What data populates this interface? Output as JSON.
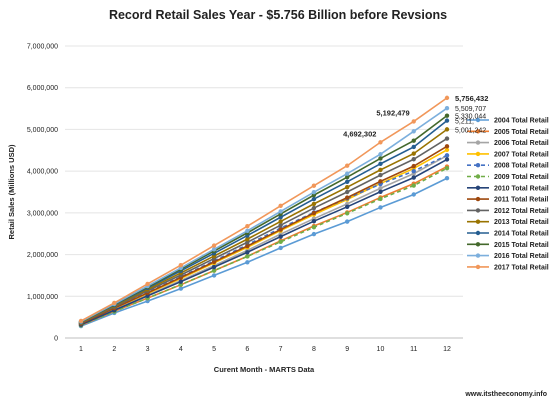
{
  "chart_data": {
    "type": "line",
    "title": "Record Retail Sales Year - $5.756 Billion before Revsions",
    "xlabel": "Curent Month - MARTS Data",
    "ylabel": "Retail Sales (Millions USD)",
    "x": [
      1,
      2,
      3,
      4,
      5,
      6,
      7,
      8,
      9,
      10,
      11,
      12
    ],
    "ylim": [
      0,
      7000000
    ],
    "yticks": [
      0,
      1000000,
      2000000,
      3000000,
      4000000,
      5000000,
      6000000,
      7000000
    ],
    "ytick_labels": [
      "0",
      "1,000,000",
      "2,000,000",
      "3,000,000",
      "4,000,000",
      "5,000,000",
      "6,000,000",
      "7,000,000"
    ],
    "grid": true,
    "legend_position": "right",
    "series": [
      {
        "name": "2004 Total Retail",
        "color": "#5b9bd5",
        "dashed": false,
        "values": [
          285000,
          600000,
          885000,
          1185000,
          1500000,
          1815000,
          2160000,
          2490000,
          2790000,
          3130000,
          3440000,
          3830000
        ]
      },
      {
        "name": "2005 Total Retail",
        "color": "#ed7d31",
        "dashed": false,
        "values": [
          305000,
          640000,
          955000,
          1275000,
          1615000,
          1960000,
          2330000,
          2685000,
          3010000,
          3370000,
          3700000,
          4110000
        ]
      },
      {
        "name": "2006 Total Retail",
        "color": "#a5a5a5",
        "dashed": false,
        "values": [
          330000,
          690000,
          1025000,
          1375000,
          1735000,
          2100000,
          2490000,
          2860000,
          3215000,
          3590000,
          3940000,
          4370000
        ]
      },
      {
        "name": "2007 Total Retail",
        "color": "#ffc000",
        "dashed": false,
        "values": [
          345000,
          715000,
          1065000,
          1425000,
          1800000,
          2175000,
          2575000,
          2960000,
          3320000,
          3705000,
          4065000,
          4510000
        ]
      },
      {
        "name": "2008 Total Retail",
        "color": "#4472c4",
        "dashed": true,
        "values": [
          355000,
          735000,
          1095000,
          1465000,
          1850000,
          2235000,
          2635000,
          3010000,
          3345000,
          3690000,
          4000000,
          4380000
        ]
      },
      {
        "name": "2009 Total Retail",
        "color": "#70ad47",
        "dashed": true,
        "values": [
          305000,
          635000,
          955000,
          1280000,
          1615000,
          1955000,
          2305000,
          2655000,
          2990000,
          3335000,
          3655000,
          4070000
        ]
      },
      {
        "name": "2010 Total Retail",
        "color": "#264478",
        "dashed": false,
        "values": [
          320000,
          665000,
          1010000,
          1350000,
          1700000,
          2055000,
          2430000,
          2800000,
          3145000,
          3505000,
          3845000,
          4280000
        ]
      },
      {
        "name": "2011 Total Retail",
        "color": "#9e480e",
        "dashed": false,
        "values": [
          345000,
          715000,
          1080000,
          1450000,
          1825000,
          2205000,
          2600000,
          2995000,
          3365000,
          3755000,
          4120000,
          4595000
        ]
      },
      {
        "name": "2012 Total Retail",
        "color": "#636363",
        "dashed": false,
        "values": [
          360000,
          745000,
          1130000,
          1510000,
          1905000,
          2295000,
          2705000,
          3115000,
          3500000,
          3905000,
          4285000,
          4780000
        ]
      },
      {
        "name": "2013 Total Retail",
        "color": "#997300",
        "dashed": false,
        "values": [
          375000,
          770000,
          1165000,
          1560000,
          1965000,
          2370000,
          2795000,
          3215000,
          3615000,
          4030000,
          4420000,
          5001242
        ]
      },
      {
        "name": "2014 Total Retail",
        "color": "#255e91",
        "dashed": false,
        "values": [
          385000,
          790000,
          1200000,
          1610000,
          2030000,
          2455000,
          2895000,
          3330000,
          3745000,
          4175000,
          4580000,
          5211000
        ]
      },
      {
        "name": "2015 Total Retail",
        "color": "#43682b",
        "dashed": false,
        "values": [
          390000,
          805000,
          1225000,
          1650000,
          2085000,
          2520000,
          2975000,
          3425000,
          3855000,
          4305000,
          4730000,
          5330044
        ]
      },
      {
        "name": "2016 Total Retail",
        "color": "#7cafdd",
        "dashed": false,
        "values": [
          395000,
          815000,
          1245000,
          1680000,
          2125000,
          2570000,
          3035000,
          3495000,
          3940000,
          4405000,
          4955000,
          5509707
        ]
      },
      {
        "name": "2017 Total Retail",
        "color": "#f1975a",
        "dashed": false,
        "values": [
          410000,
          840000,
          1295000,
          1745000,
          2215000,
          2680000,
          3170000,
          3650000,
          4130000,
          4692302,
          5192479,
          5756432
        ]
      }
    ],
    "annotations": [
      {
        "text": "5,756,432",
        "x": 12,
        "y": 5756432,
        "bold": true
      },
      {
        "text": "5,509,707",
        "x": 12,
        "y": 5509707,
        "bold": false
      },
      {
        "text": "5,330,044",
        "x": 12,
        "y": 5330044,
        "bold": false
      },
      {
        "text": "5,211,",
        "x": 12,
        "y": 5211000,
        "bold": false
      },
      {
        "text": "5,001,242",
        "x": 12,
        "y": 5001242,
        "bold": false
      },
      {
        "text": "5,192,479",
        "x": 11,
        "y": 5192479,
        "bold": true
      },
      {
        "text": "4,692,302",
        "x": 10,
        "y": 4692302,
        "bold": true
      }
    ]
  },
  "footer": "www.itstheeconomy.info"
}
